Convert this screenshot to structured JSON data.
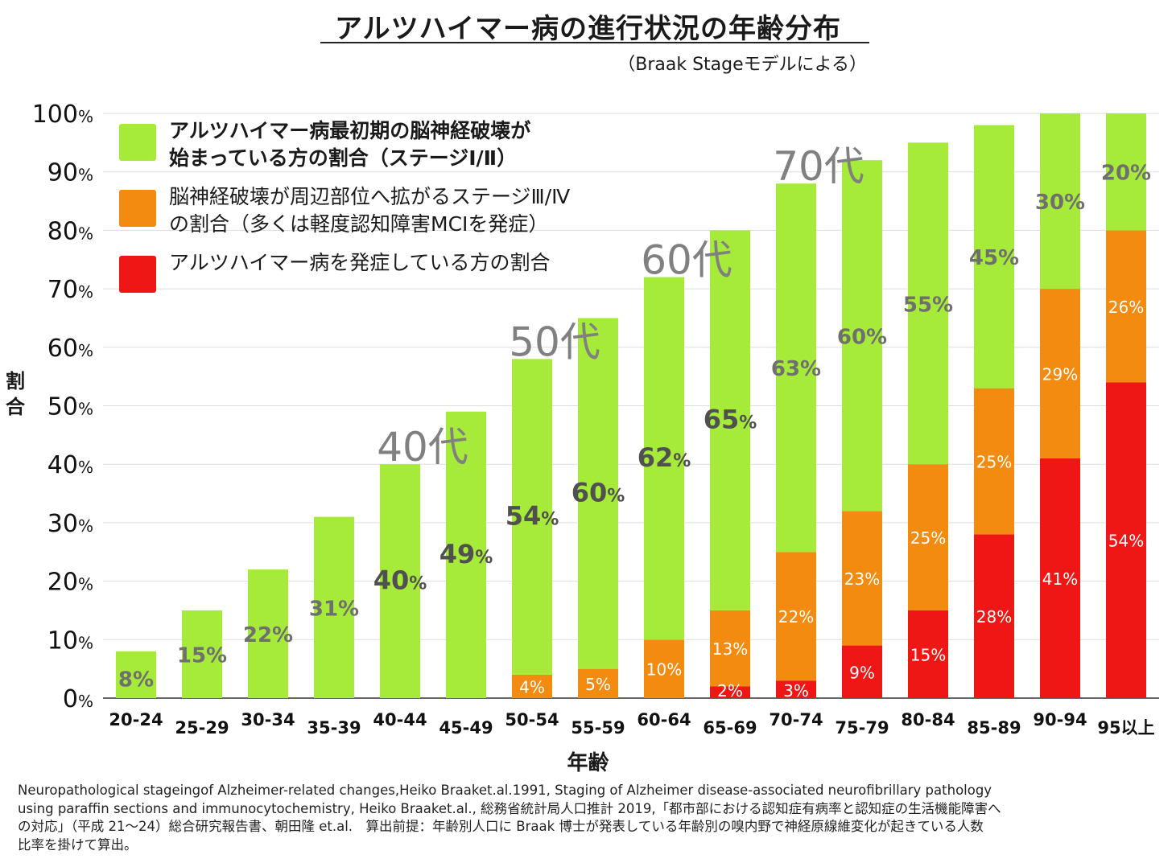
{
  "title": "アルツハイマー病の進行状況の年齢分布",
  "subtitle": "（Braak Stageモデルによる）",
  "y_axis_label": "割合",
  "x_axis_label": "年齢",
  "legend": [
    {
      "lines": [
        "アルツハイマー病最初期の脳神経破壊が",
        "始まっている方の割合（ステージⅠ/Ⅱ）"
      ],
      "color": "#a6ea3a"
    },
    {
      "lines": [
        "脳神経破壊が周辺部位へ拡がるステージⅢ/Ⅳ",
        "の割合（多くは軽度認知障害MCIを発症）"
      ],
      "color": "#f38b11"
    },
    {
      "lines": [
        "アルツハイマー病を発症している方の割合"
      ],
      "color": "#ee1715"
    }
  ],
  "decade_labels": [
    {
      "text": "40代",
      "category": "40-44",
      "value": 40
    },
    {
      "text": "50代",
      "category": "50-54",
      "value": 58
    },
    {
      "text": "60代",
      "category": "60-64",
      "value": 72
    },
    {
      "text": "70代",
      "category": "70-74",
      "value": 88
    }
  ],
  "footnote": [
    "Neuropathological stageingof Alzheimer-related changes,Heiko Braaket.al.1991, Staging of Alzheimer disease-associated neurofibrillary pathology",
    "using paraffin sections and immunocytochemistry, Heiko Braaket.al., 総務省統計局人口推計 2019,「都市部における認知症有病率と認知症の生活機能障害へ",
    "の対応」（平成 21～24）総合研究報告書、朝田隆 et.al.　算出前提：年齢別人口に Braak 博士が発表している年齢別の嗅内野で神経原線維変化が起きている人数",
    "比率を掛けて算出。"
  ],
  "colors": {
    "stage12": "#a6ea3a",
    "stage34": "#f38b11",
    "ad": "#ee1715",
    "grid": "#dddddd",
    "label_dark": "#505050",
    "label_gray": "#6f6f6f",
    "decade": "#808080"
  },
  "chart_data": {
    "type": "bar",
    "stacked": true,
    "ylim": [
      0,
      100
    ],
    "yticks": [
      0,
      10,
      20,
      30,
      40,
      50,
      60,
      70,
      80,
      90,
      100
    ],
    "ytick_suffix": "%",
    "categories": [
      "20-24",
      "25-29",
      "30-34",
      "35-39",
      "40-44",
      "45-49",
      "50-54",
      "55-59",
      "60-64",
      "65-69",
      "70-74",
      "75-79",
      "80-84",
      "85-89",
      "90-94",
      "95以上"
    ],
    "series": [
      {
        "name": "アルツハイマー病を発症している方の割合",
        "key": "ad",
        "values": [
          0,
          0,
          0,
          0,
          0,
          0,
          0,
          0,
          0,
          2,
          3,
          9,
          15,
          28,
          41,
          54
        ],
        "labels": [
          "",
          "",
          "",
          "",
          "",
          "",
          "",
          "",
          "",
          "2%",
          "3%",
          "9%",
          "15%",
          "28%",
          "41%",
          "54%"
        ]
      },
      {
        "name": "ステージⅢ/Ⅳの割合",
        "key": "stage34",
        "values": [
          0,
          0,
          0,
          0,
          0,
          0,
          4,
          5,
          10,
          13,
          22,
          23,
          25,
          25,
          29,
          26
        ],
        "labels": [
          "",
          "",
          "",
          "",
          "",
          "",
          "4%",
          "5%",
          "10%",
          "13%",
          "22%",
          "23%",
          "25%",
          "25%",
          "29%",
          "26%"
        ]
      },
      {
        "name": "ステージⅠ/Ⅱの割合",
        "key": "stage12",
        "values": [
          8,
          15,
          22,
          31,
          40,
          49,
          54,
          60,
          62,
          65,
          63,
          60,
          55,
          45,
          30,
          20
        ],
        "labels": [
          "8%",
          "15%",
          "22%",
          "31%",
          "40%",
          "49%",
          "54%",
          "60%",
          "62%",
          "65%",
          "63%",
          "60%",
          "55%",
          "45%",
          "30%",
          "20%"
        ]
      }
    ]
  }
}
